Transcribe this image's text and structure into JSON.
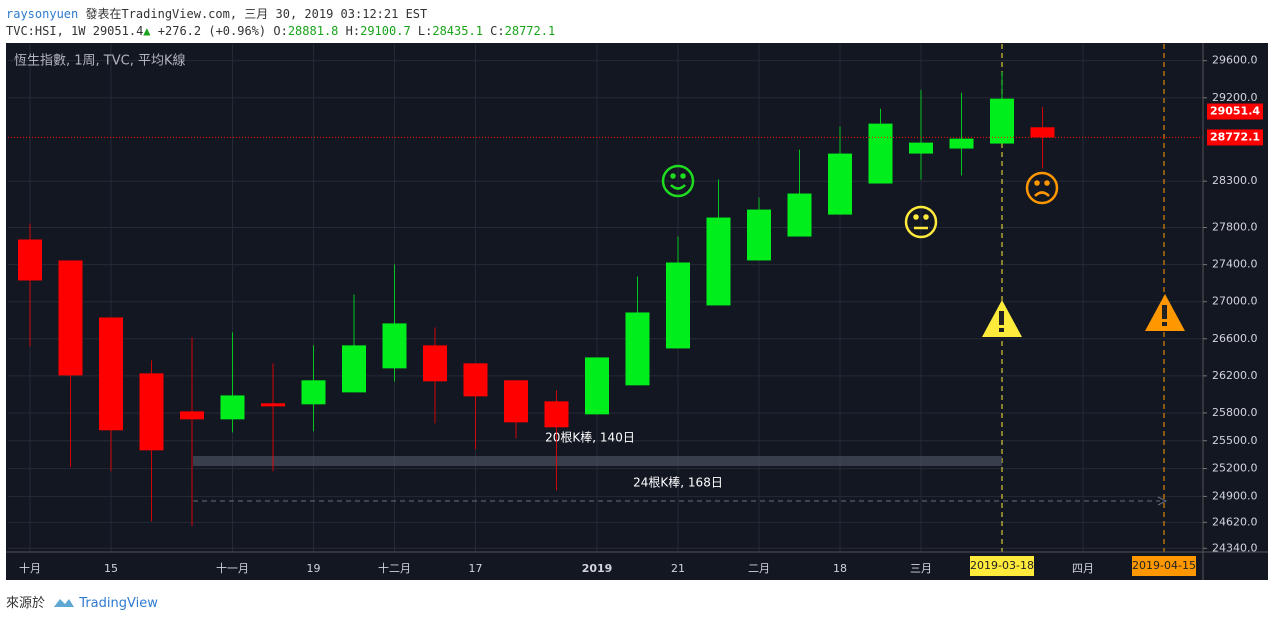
{
  "chart_data": {
    "type": "candlestick",
    "author": "raysonyuen",
    "published": "發表在TradingView.com, 三月 30, 2019 03:12:21 EST",
    "symbol": "TVC:HSI, 1W",
    "last_price": 29051.4,
    "change": "+276.2 (+0.96%)",
    "ohlc_labels": [
      "O:",
      "H:",
      "L:",
      "C:"
    ],
    "legend": "恆生指數, 1周, TVC, 平均K線",
    "categories": [
      "十月",
      null,
      "15",
      null,
      null,
      "十一月",
      null,
      "19",
      null,
      "十二月",
      null,
      "17",
      null,
      null,
      "2019",
      null,
      "21",
      null,
      "二月",
      null,
      "18",
      null,
      "三月",
      null,
      "2019-03-18",
      null,
      "四月",
      null,
      "2019-04-15"
    ],
    "open": [
      27671,
      27445,
      26830,
      26227,
      25817,
      25731,
      25904,
      25893,
      26022,
      26281,
      26529,
      26335,
      26152,
      25925,
      25785,
      26098,
      26496,
      26960,
      27445,
      27703,
      27940,
      28275,
      28598,
      28652,
      28706,
      28881.8,
      null,
      null,
      null
    ],
    "high": [
      27843,
      27445,
      26830,
      26367,
      26615,
      26669,
      26335,
      26529,
      27078,
      27402,
      26723,
      26335,
      26152,
      26044,
      26399,
      27272,
      27703,
      28318,
      28124,
      28641,
      28889,
      29083,
      29287,
      29255,
      29481,
      29100.7,
      null,
      null,
      null
    ],
    "low": [
      26518,
      25214,
      25171,
      24632,
      24578,
      25591,
      25171,
      25602,
      26022,
      26141,
      25688,
      25408,
      25527,
      24966,
      25785,
      26098,
      26496,
      26960,
      27445,
      27703,
      27940,
      28275,
      28318,
      28361,
      28706,
      28435.1,
      null,
      null,
      null
    ],
    "close": [
      27229,
      26205,
      25613,
      25397,
      25731,
      25989,
      25871,
      26152,
      26529,
      26766,
      26141,
      25979,
      25699,
      25645,
      26399,
      26884,
      27423,
      27908,
      27994,
      28167,
      28598,
      28921,
      28716,
      28759,
      29190,
      28772.1,
      null,
      null,
      null
    ],
    "up_color": "#00ee1c",
    "down_color": "#ff0000",
    "ylim": [
      24300,
      29780
    ],
    "yticks": [
      {
        "value": 29600,
        "label": "29600.0"
      },
      {
        "value": 29200,
        "label": "29200.0"
      },
      {
        "value": 28300,
        "label": "28300.0"
      },
      {
        "value": 27800,
        "label": "27800.0"
      },
      {
        "value": 27400,
        "label": "27400.0"
      },
      {
        "value": 27000,
        "label": "27000.0"
      },
      {
        "value": 26600,
        "label": "26600.0"
      },
      {
        "value": 26200,
        "label": "26200.0"
      },
      {
        "value": 25800,
        "label": "25800.0"
      },
      {
        "value": 25500,
        "label": "25500.0"
      },
      {
        "value": 25200,
        "label": "25200.0"
      },
      {
        "value": 24900,
        "label": "24900.0"
      },
      {
        "value": 24620,
        "label": "24620.0"
      },
      {
        "value": 24340,
        "label": "24340.0"
      }
    ],
    "grid": true,
    "vlines": [
      {
        "at": "2019-03-18",
        "color": "#ffeb3b"
      },
      {
        "at": "2019-04-15",
        "color": "#ff9800"
      }
    ],
    "annotations": [
      "20根K棒, 140日",
      "24根K棒, 168日"
    ],
    "source": "來源於",
    "brand": "TradingView"
  }
}
